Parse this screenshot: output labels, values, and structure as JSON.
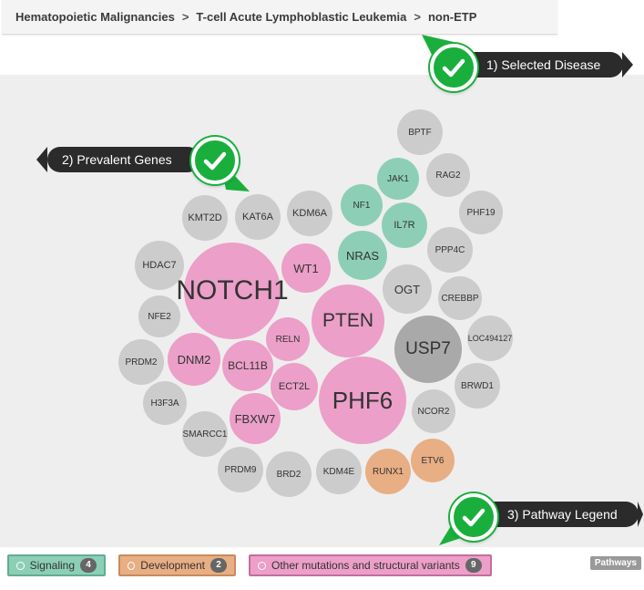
{
  "breadcrumb": {
    "items": [
      "Hematopoietic Malignancies",
      "T-cell Acute Lymphoblastic Leukemia",
      "non-ETP"
    ],
    "separator": ">"
  },
  "callouts": {
    "selected_disease": "1) Selected Disease",
    "prevalent_genes": "2) Prevalent Genes",
    "pathway_legend": "3) Pathway Legend"
  },
  "colors": {
    "signaling": "#8ccfb6",
    "development": "#e8ae84",
    "other": "#ec9fc8",
    "neutral": "#cccccc",
    "usp7": "#a9a9a9",
    "check_green": "#1aaf3c",
    "callout_bg": "#2b2b2b"
  },
  "genes": [
    {
      "name": "BPTF",
      "group": "neutral"
    },
    {
      "name": "JAK1",
      "group": "signaling"
    },
    {
      "name": "RAG2",
      "group": "neutral"
    },
    {
      "name": "NF1",
      "group": "signaling"
    },
    {
      "name": "IL7R",
      "group": "signaling"
    },
    {
      "name": "PHF19",
      "group": "neutral"
    },
    {
      "name": "KMT2D",
      "group": "neutral"
    },
    {
      "name": "KAT6A",
      "group": "neutral"
    },
    {
      "name": "KDM6A",
      "group": "neutral"
    },
    {
      "name": "NRAS",
      "group": "signaling"
    },
    {
      "name": "PPP4C",
      "group": "neutral"
    },
    {
      "name": "HDAC7",
      "group": "neutral"
    },
    {
      "name": "NOTCH1",
      "group": "other"
    },
    {
      "name": "WT1",
      "group": "other"
    },
    {
      "name": "OGT",
      "group": "neutral"
    },
    {
      "name": "CREBBP",
      "group": "neutral"
    },
    {
      "name": "NFE2",
      "group": "neutral"
    },
    {
      "name": "PTEN",
      "group": "other"
    },
    {
      "name": "LOC494127",
      "group": "neutral"
    },
    {
      "name": "RELN",
      "group": "other"
    },
    {
      "name": "USP7",
      "group": "usp7"
    },
    {
      "name": "PRDM2",
      "group": "neutral"
    },
    {
      "name": "DNM2",
      "group": "other"
    },
    {
      "name": "BCL11B",
      "group": "other"
    },
    {
      "name": "BRWD1",
      "group": "neutral"
    },
    {
      "name": "ECT2L",
      "group": "other"
    },
    {
      "name": "PHF6",
      "group": "other"
    },
    {
      "name": "H3F3A",
      "group": "neutral"
    },
    {
      "name": "NCOR2",
      "group": "neutral"
    },
    {
      "name": "FBXW7",
      "group": "other"
    },
    {
      "name": "SMARCC1",
      "group": "neutral"
    },
    {
      "name": "ETV6",
      "group": "development"
    },
    {
      "name": "PRDM9",
      "group": "neutral"
    },
    {
      "name": "BRD2",
      "group": "neutral"
    },
    {
      "name": "KDM4E",
      "group": "neutral"
    },
    {
      "name": "RUNX1",
      "group": "development"
    }
  ],
  "legend": {
    "signaling": {
      "label": "Signaling",
      "count": "4"
    },
    "development": {
      "label": "Development",
      "count": "2"
    },
    "other": {
      "label": "Other mutations and structural variants",
      "count": "9"
    },
    "pathways": "Pathways"
  }
}
